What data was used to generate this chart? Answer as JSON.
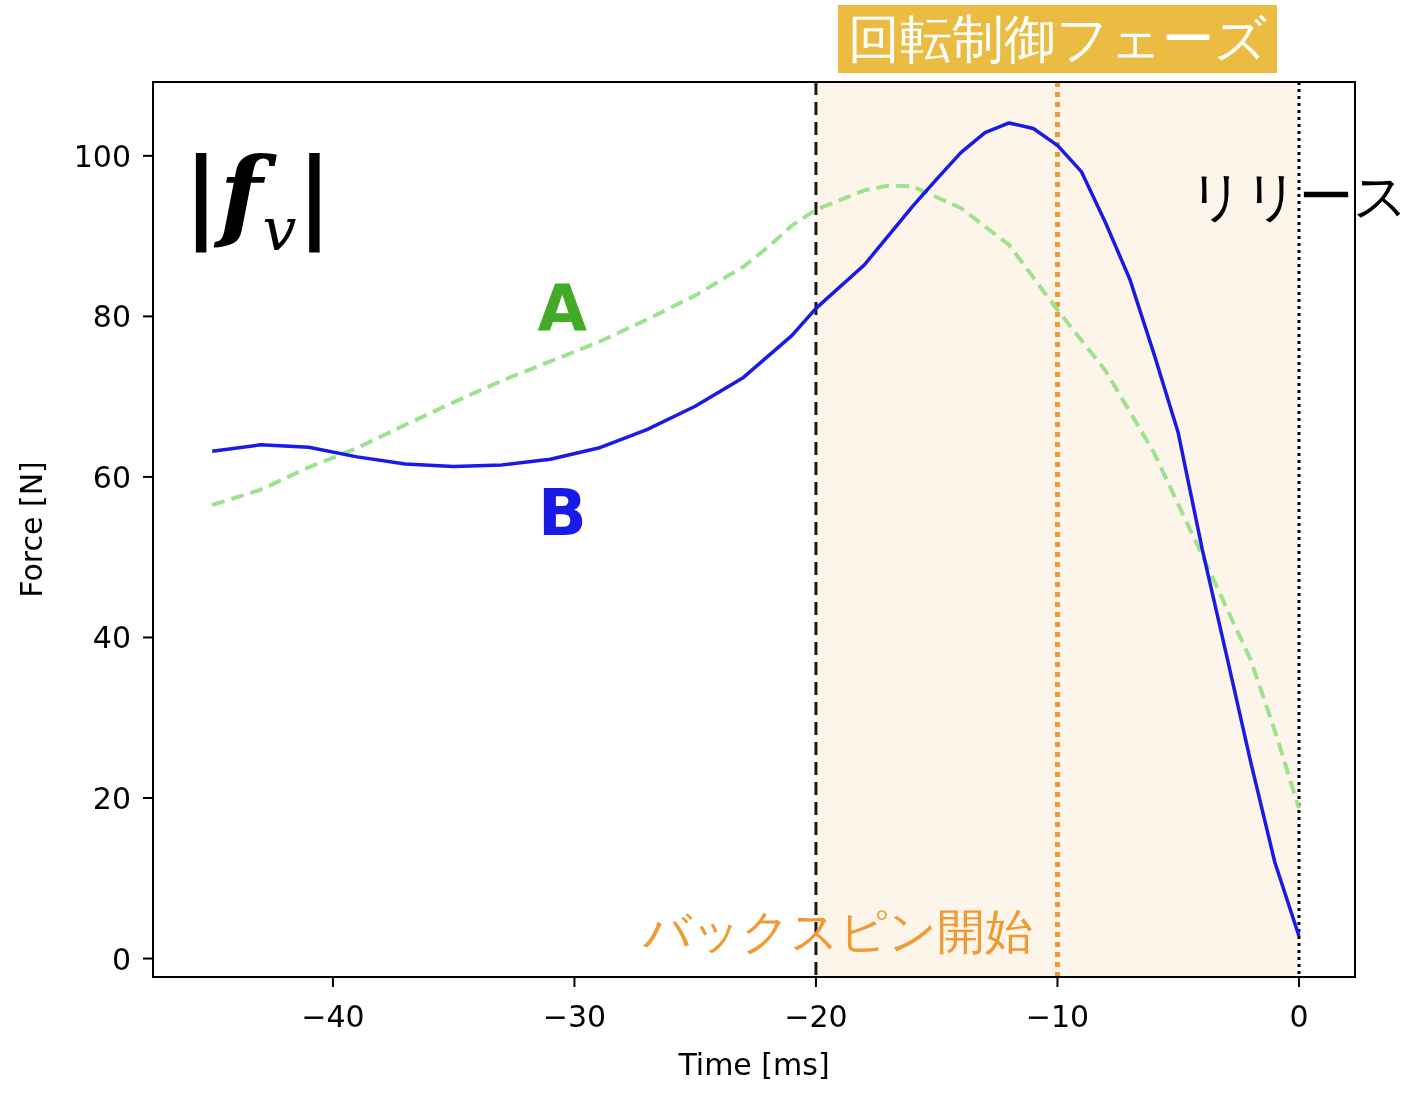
{
  "chart_data": {
    "type": "line",
    "xlabel": "Time [ms]",
    "ylabel": "Force [N]",
    "xlim": [
      -47.45,
      2.32
    ],
    "ylim": [
      -2.3,
      109.2
    ],
    "xticks": [
      -40,
      -30,
      -20,
      -10,
      0
    ],
    "yticks": [
      0,
      20,
      40,
      60,
      80,
      100
    ],
    "annotations": [
      "|f$_{v}$|"
    ],
    "series": [
      {
        "name": "A",
        "color": "#9de38f",
        "line_style": "dashed",
        "x": [
          -45,
          -43,
          -41,
          -39,
          -37,
          -35,
          -33,
          -31,
          -29,
          -27,
          -25,
          -23,
          -22,
          -21,
          -20,
          -18,
          -17,
          -16,
          -14,
          -12,
          -10,
          -8,
          -6,
          -4,
          -2,
          -1,
          0
        ],
        "values": [
          56.5,
          58.4,
          61.2,
          63.6,
          66.5,
          69.3,
          72.0,
          74.4,
          76.8,
          79.6,
          82.6,
          86.2,
          88.6,
          91.3,
          93.3,
          95.7,
          96.3,
          96.2,
          93.5,
          88.9,
          80.8,
          73.2,
          63.0,
          50.2,
          37.2,
          28.4,
          18.7
        ]
      },
      {
        "name": "B",
        "color": "#1a1ae6",
        "line_style": "solid",
        "x": [
          -45,
          -43,
          -41,
          -39,
          -37,
          -35,
          -33,
          -31,
          -29,
          -27,
          -25,
          -23,
          -21,
          -20,
          -18,
          -16,
          -15,
          -14,
          -13,
          -12,
          -11,
          -10,
          -9,
          -8,
          -7,
          -6,
          -5,
          -4,
          -3,
          -2,
          -1,
          0
        ],
        "values": [
          63.2,
          64.0,
          63.7,
          62.5,
          61.6,
          61.3,
          61.5,
          62.2,
          63.6,
          65.9,
          68.8,
          72.4,
          77.6,
          81.0,
          86.4,
          93.7,
          97.1,
          100.4,
          102.9,
          104.1,
          103.4,
          101.3,
          98.0,
          91.6,
          84.6,
          75.3,
          65.5,
          50.9,
          37.8,
          24.5,
          12.0,
          2.8
        ]
      }
    ],
    "ref_lines": [
      {
        "axis": "x",
        "value": -20,
        "color": "#1a1a1a",
        "line_style": "dashed"
      },
      {
        "axis": "x",
        "value": -10,
        "color": "#ef9a35",
        "line_style": "dotted",
        "label": "バックスピン開始"
      },
      {
        "axis": "x",
        "value": 0,
        "color": "#000000",
        "line_style": "dotted",
        "label": "リリース"
      }
    ],
    "bands": [
      {
        "axis": "x",
        "from": -20,
        "to": 0,
        "label": "回転制御フェーズ",
        "color": "#fdf5e9"
      }
    ]
  }
}
